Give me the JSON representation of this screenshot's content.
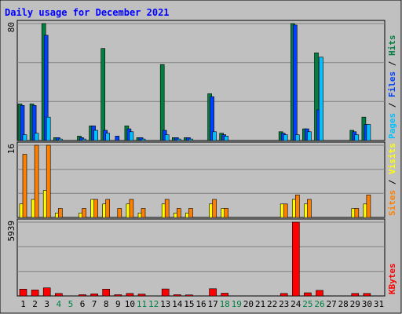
{
  "chart_data": {
    "type": "bar",
    "title": "Daily usage for December 2021",
    "categories": [
      "1",
      "2",
      "3",
      "4",
      "5",
      "6",
      "7",
      "8",
      "9",
      "10",
      "11",
      "12",
      "13",
      "14",
      "15",
      "16",
      "17",
      "18",
      "19",
      "20",
      "21",
      "22",
      "23",
      "24",
      "25",
      "26",
      "27",
      "28",
      "29",
      "30",
      "31"
    ],
    "weekend_days": [
      "4",
      "5",
      "11",
      "12",
      "18",
      "19",
      "25",
      "26"
    ],
    "panels": [
      {
        "id": "hits",
        "ymax_label": "80",
        "ymax": 80,
        "axis_label_parts": [
          {
            "text": "Pages",
            "color": "#00c0ff"
          },
          {
            "text": " / ",
            "color": "#000000"
          },
          {
            "text": "Files",
            "color": "#0040ff"
          },
          {
            "text": " / ",
            "color": "#000000"
          },
          {
            "text": "Hits",
            "color": "#008040"
          }
        ],
        "series": [
          {
            "name": "Hits",
            "color": "#008040",
            "values": [
              25,
              25,
              80,
              2,
              0,
              3,
              10,
              63,
              0,
              10,
              2,
              0,
              52,
              2,
              2,
              0,
              32,
              5,
              0,
              0,
              0,
              0,
              6,
              80,
              8,
              60,
              0,
              0,
              7,
              16,
              0
            ]
          },
          {
            "name": "Files",
            "color": "#0040ff",
            "values": [
              24,
              24,
              72,
              2,
              0,
              2,
              10,
              7,
              3,
              8,
              2,
              0,
              7,
              2,
              2,
              0,
              30,
              4,
              0,
              0,
              0,
              0,
              5,
              79,
              8,
              21,
              0,
              0,
              6,
              11,
              0
            ]
          },
          {
            "name": "Pages",
            "color": "#00c0ff",
            "values": [
              4,
              5,
              16,
              1,
              0,
              1,
              7,
              5,
              0,
              6,
              1,
              0,
              4,
              1,
              1,
              0,
              6,
              3,
              0,
              0,
              0,
              0,
              4,
              4,
              6,
              57,
              0,
              0,
              4,
              11,
              0
            ]
          }
        ]
      },
      {
        "id": "visits",
        "ymax_label": "16",
        "ymax": 16,
        "axis_label_parts": [
          {
            "text": "Sites",
            "color": "#ff8000"
          },
          {
            "text": " / ",
            "color": "#000000"
          },
          {
            "text": "Visits",
            "color": "#ffff00"
          }
        ],
        "series": [
          {
            "name": "Visits",
            "color": "#ffff00",
            "values": [
              3,
              4,
              6,
              1,
              0,
              1,
              4,
              3,
              0,
              3,
              1,
              0,
              3,
              1,
              1,
              0,
              3,
              2,
              0,
              0,
              0,
              0,
              3,
              4,
              3,
              0,
              0,
              0,
              2,
              3,
              0
            ]
          },
          {
            "name": "Sites",
            "color": "#ff8000",
            "values": [
              14,
              16,
              16,
              2,
              0,
              2,
              4,
              4,
              2,
              4,
              2,
              0,
              4,
              2,
              2,
              0,
              4,
              2,
              0,
              0,
              0,
              0,
              3,
              5,
              4,
              0,
              0,
              0,
              2,
              5,
              0
            ]
          }
        ]
      },
      {
        "id": "kbytes",
        "ymax_label": "5939",
        "ymax": 5939,
        "axis_label_parts": [
          {
            "text": "KBytes",
            "color": "#ff0000"
          }
        ],
        "series": [
          {
            "name": "KBytes",
            "color": "#ff0000",
            "values": [
              550,
              480,
              650,
              200,
              0,
              100,
              170,
              550,
              100,
              200,
              150,
              0,
              560,
              100,
              80,
              0,
              580,
              220,
              0,
              0,
              0,
              0,
              200,
              5939,
              250,
              450,
              0,
              0,
              200,
              200,
              0
            ]
          }
        ]
      }
    ]
  }
}
